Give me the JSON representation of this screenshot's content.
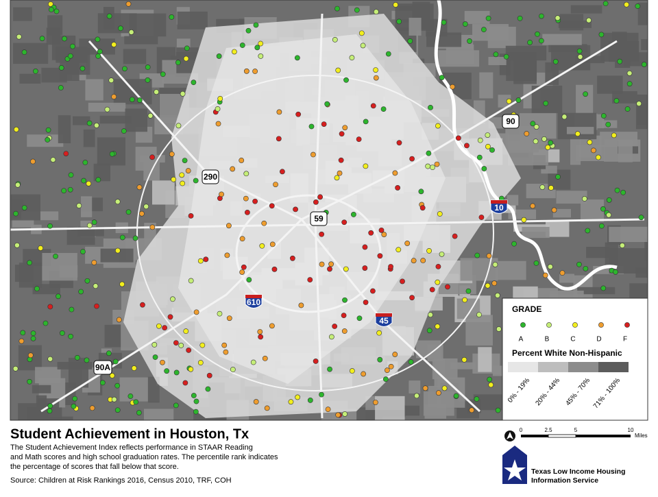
{
  "map": {
    "highway_shields": [
      "290",
      "59",
      "10",
      "90",
      "610",
      "45",
      "90A"
    ]
  },
  "legend": {
    "grade_title": "GRADE",
    "grades": [
      {
        "label": "A",
        "color": "#2db52d"
      },
      {
        "label": "B",
        "color": "#c5ee78"
      },
      {
        "label": "C",
        "color": "#f2ee1e"
      },
      {
        "label": "D",
        "color": "#ee9d2f"
      },
      {
        "label": "F",
        "color": "#d61f1f"
      }
    ],
    "shade_title": "Percent White Non-Hispanic",
    "shades": [
      {
        "label": "0% - 19%",
        "color": "#e6e6e6"
      },
      {
        "label": "20% - 44%",
        "color": "#bdbdbd"
      },
      {
        "label": "45% - 70%",
        "color": "#8c8c8c"
      },
      {
        "label": "71% - 100%",
        "color": "#5c5c5c"
      }
    ]
  },
  "footer": {
    "title": "Student Achievement in Houston, Tx",
    "description": [
      "The Student Achievement Index reflects performance in STAAR Reading",
      "and Math scores and high school graduation rates. The percentile rank indicates",
      "the percentage of scores that fall below that score."
    ],
    "source": "Source: Children at Risk Rankings 2016, Census 2010, TRF, COH",
    "scale_labels": [
      "0",
      "2.5",
      "5",
      "10"
    ],
    "scale_unit": "Miles",
    "org_name": [
      "Texas Low Income Housing",
      "Information Service"
    ]
  }
}
